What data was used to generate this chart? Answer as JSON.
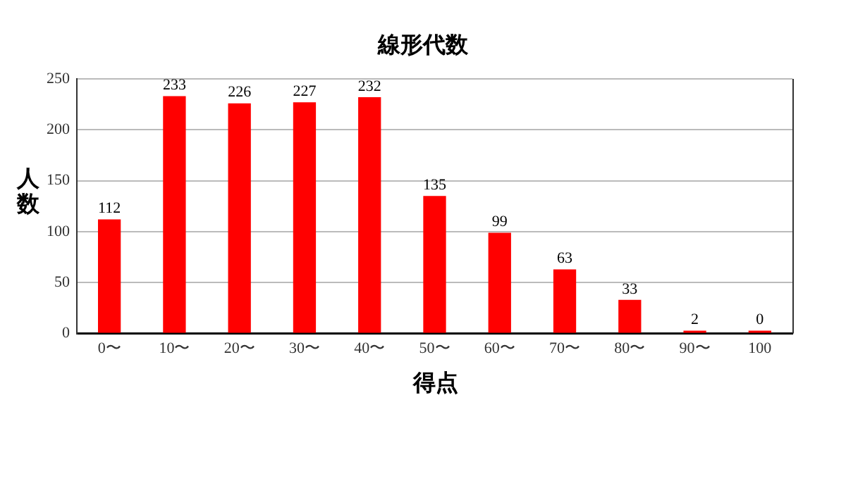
{
  "chart_data": {
    "type": "bar",
    "title": "線形代数",
    "xlabel": "得点",
    "ylabel": "人数",
    "categories": [
      "0〜",
      "10〜",
      "20〜",
      "30〜",
      "40〜",
      "50〜",
      "60〜",
      "70〜",
      "80〜",
      "90〜",
      "100"
    ],
    "values": [
      112,
      233,
      226,
      227,
      232,
      135,
      99,
      63,
      33,
      2,
      0
    ],
    "color": "#ff0000",
    "ylim": [
      0,
      250
    ],
    "yticks": [
      0,
      50,
      100,
      150,
      200,
      250
    ],
    "grid": "y",
    "data_labels": true
  }
}
